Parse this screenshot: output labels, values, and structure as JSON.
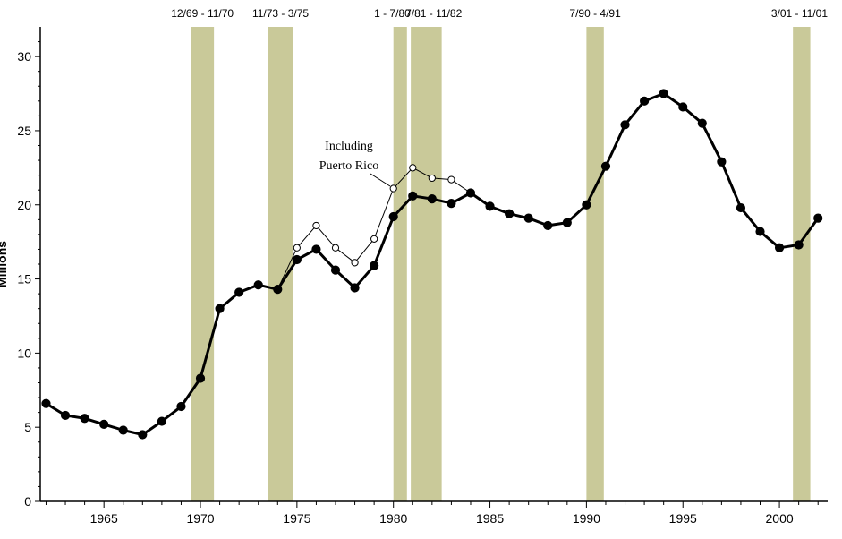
{
  "chart_data": {
    "type": "line",
    "title": "",
    "xlabel": "",
    "ylabel": "Millions",
    "xlim": [
      1961.7,
      2002.5
    ],
    "ylim": [
      0,
      32
    ],
    "x_ticks": [
      1965,
      1970,
      1975,
      1980,
      1985,
      1990,
      1995,
      2000
    ],
    "y_ticks": [
      0,
      5,
      10,
      15,
      20,
      25,
      30
    ],
    "grid": false,
    "recessions": [
      {
        "label": "12/69 - 11/70",
        "start": 1969.5,
        "end": 1970.7
      },
      {
        "label": "11/73 - 3/75",
        "start": 1973.5,
        "end": 1974.8
      },
      {
        "label": "1 - 7/80",
        "start": 1980.0,
        "end": 1980.7
      },
      {
        "label": "7/81 - 11/82",
        "start": 1980.9,
        "end": 1982.5
      },
      {
        "label": "7/90 - 4/91",
        "start": 1990.0,
        "end": 1990.9
      },
      {
        "label": "3/01 - 11/01",
        "start": 2000.7,
        "end": 2001.6
      }
    ],
    "series": [
      {
        "name": "",
        "style": "solid-filled",
        "x": [
          1962,
          1963,
          1964,
          1965,
          1966,
          1967,
          1968,
          1969,
          1970,
          1971,
          1972,
          1973,
          1974,
          1975,
          1976,
          1977,
          1978,
          1979,
          1980,
          1981,
          1982,
          1983,
          1984,
          1985,
          1986,
          1987,
          1988,
          1989,
          1990,
          1991,
          1992,
          1993,
          1994,
          1995,
          1996,
          1997,
          1998,
          1999,
          2000,
          2001,
          2002
        ],
        "values": [
          6.6,
          5.8,
          5.6,
          5.2,
          4.8,
          4.5,
          5.4,
          6.4,
          8.3,
          13.0,
          14.1,
          14.6,
          14.3,
          16.3,
          17.0,
          15.6,
          14.4,
          15.9,
          19.2,
          20.6,
          20.4,
          20.1,
          20.8,
          19.9,
          19.4,
          19.1,
          18.6,
          18.8,
          20.0,
          22.6,
          25.4,
          27.0,
          27.5,
          26.6,
          25.5,
          22.9,
          19.8,
          18.2,
          17.1,
          17.3,
          19.1
        ]
      },
      {
        "name": "Including Puerto Rico",
        "style": "thin-open",
        "x": [
          1974,
          1975,
          1976,
          1977,
          1978,
          1979,
          1980,
          1981,
          1982,
          1983,
          1984
        ],
        "values": [
          14.3,
          17.1,
          18.6,
          17.1,
          16.1,
          17.7,
          21.1,
          22.5,
          21.8,
          21.7,
          20.8
        ]
      }
    ],
    "annotations": [
      {
        "lines": [
          "Including",
          "Puerto Rico"
        ]
      }
    ]
  }
}
